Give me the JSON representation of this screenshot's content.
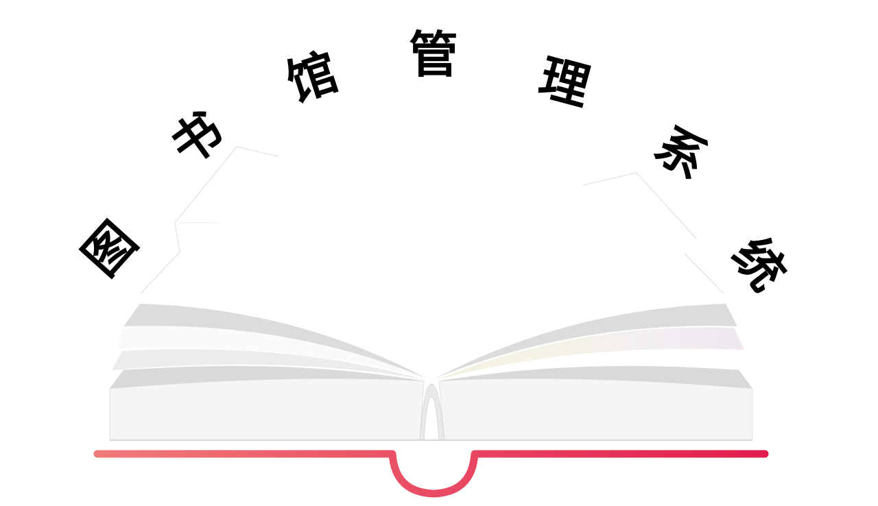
{
  "title": {
    "chars": [
      "图",
      "书",
      "馆",
      "管",
      "理",
      "系",
      "统"
    ]
  },
  "colors": {
    "text": "#000000",
    "page_light": "#f5f5f5",
    "page_shadow": "#dcdcdc",
    "ribbon_start": "#f07a7a",
    "ribbon_end": "#e21d4e"
  },
  "icons": [
    "open-book-icon"
  ]
}
